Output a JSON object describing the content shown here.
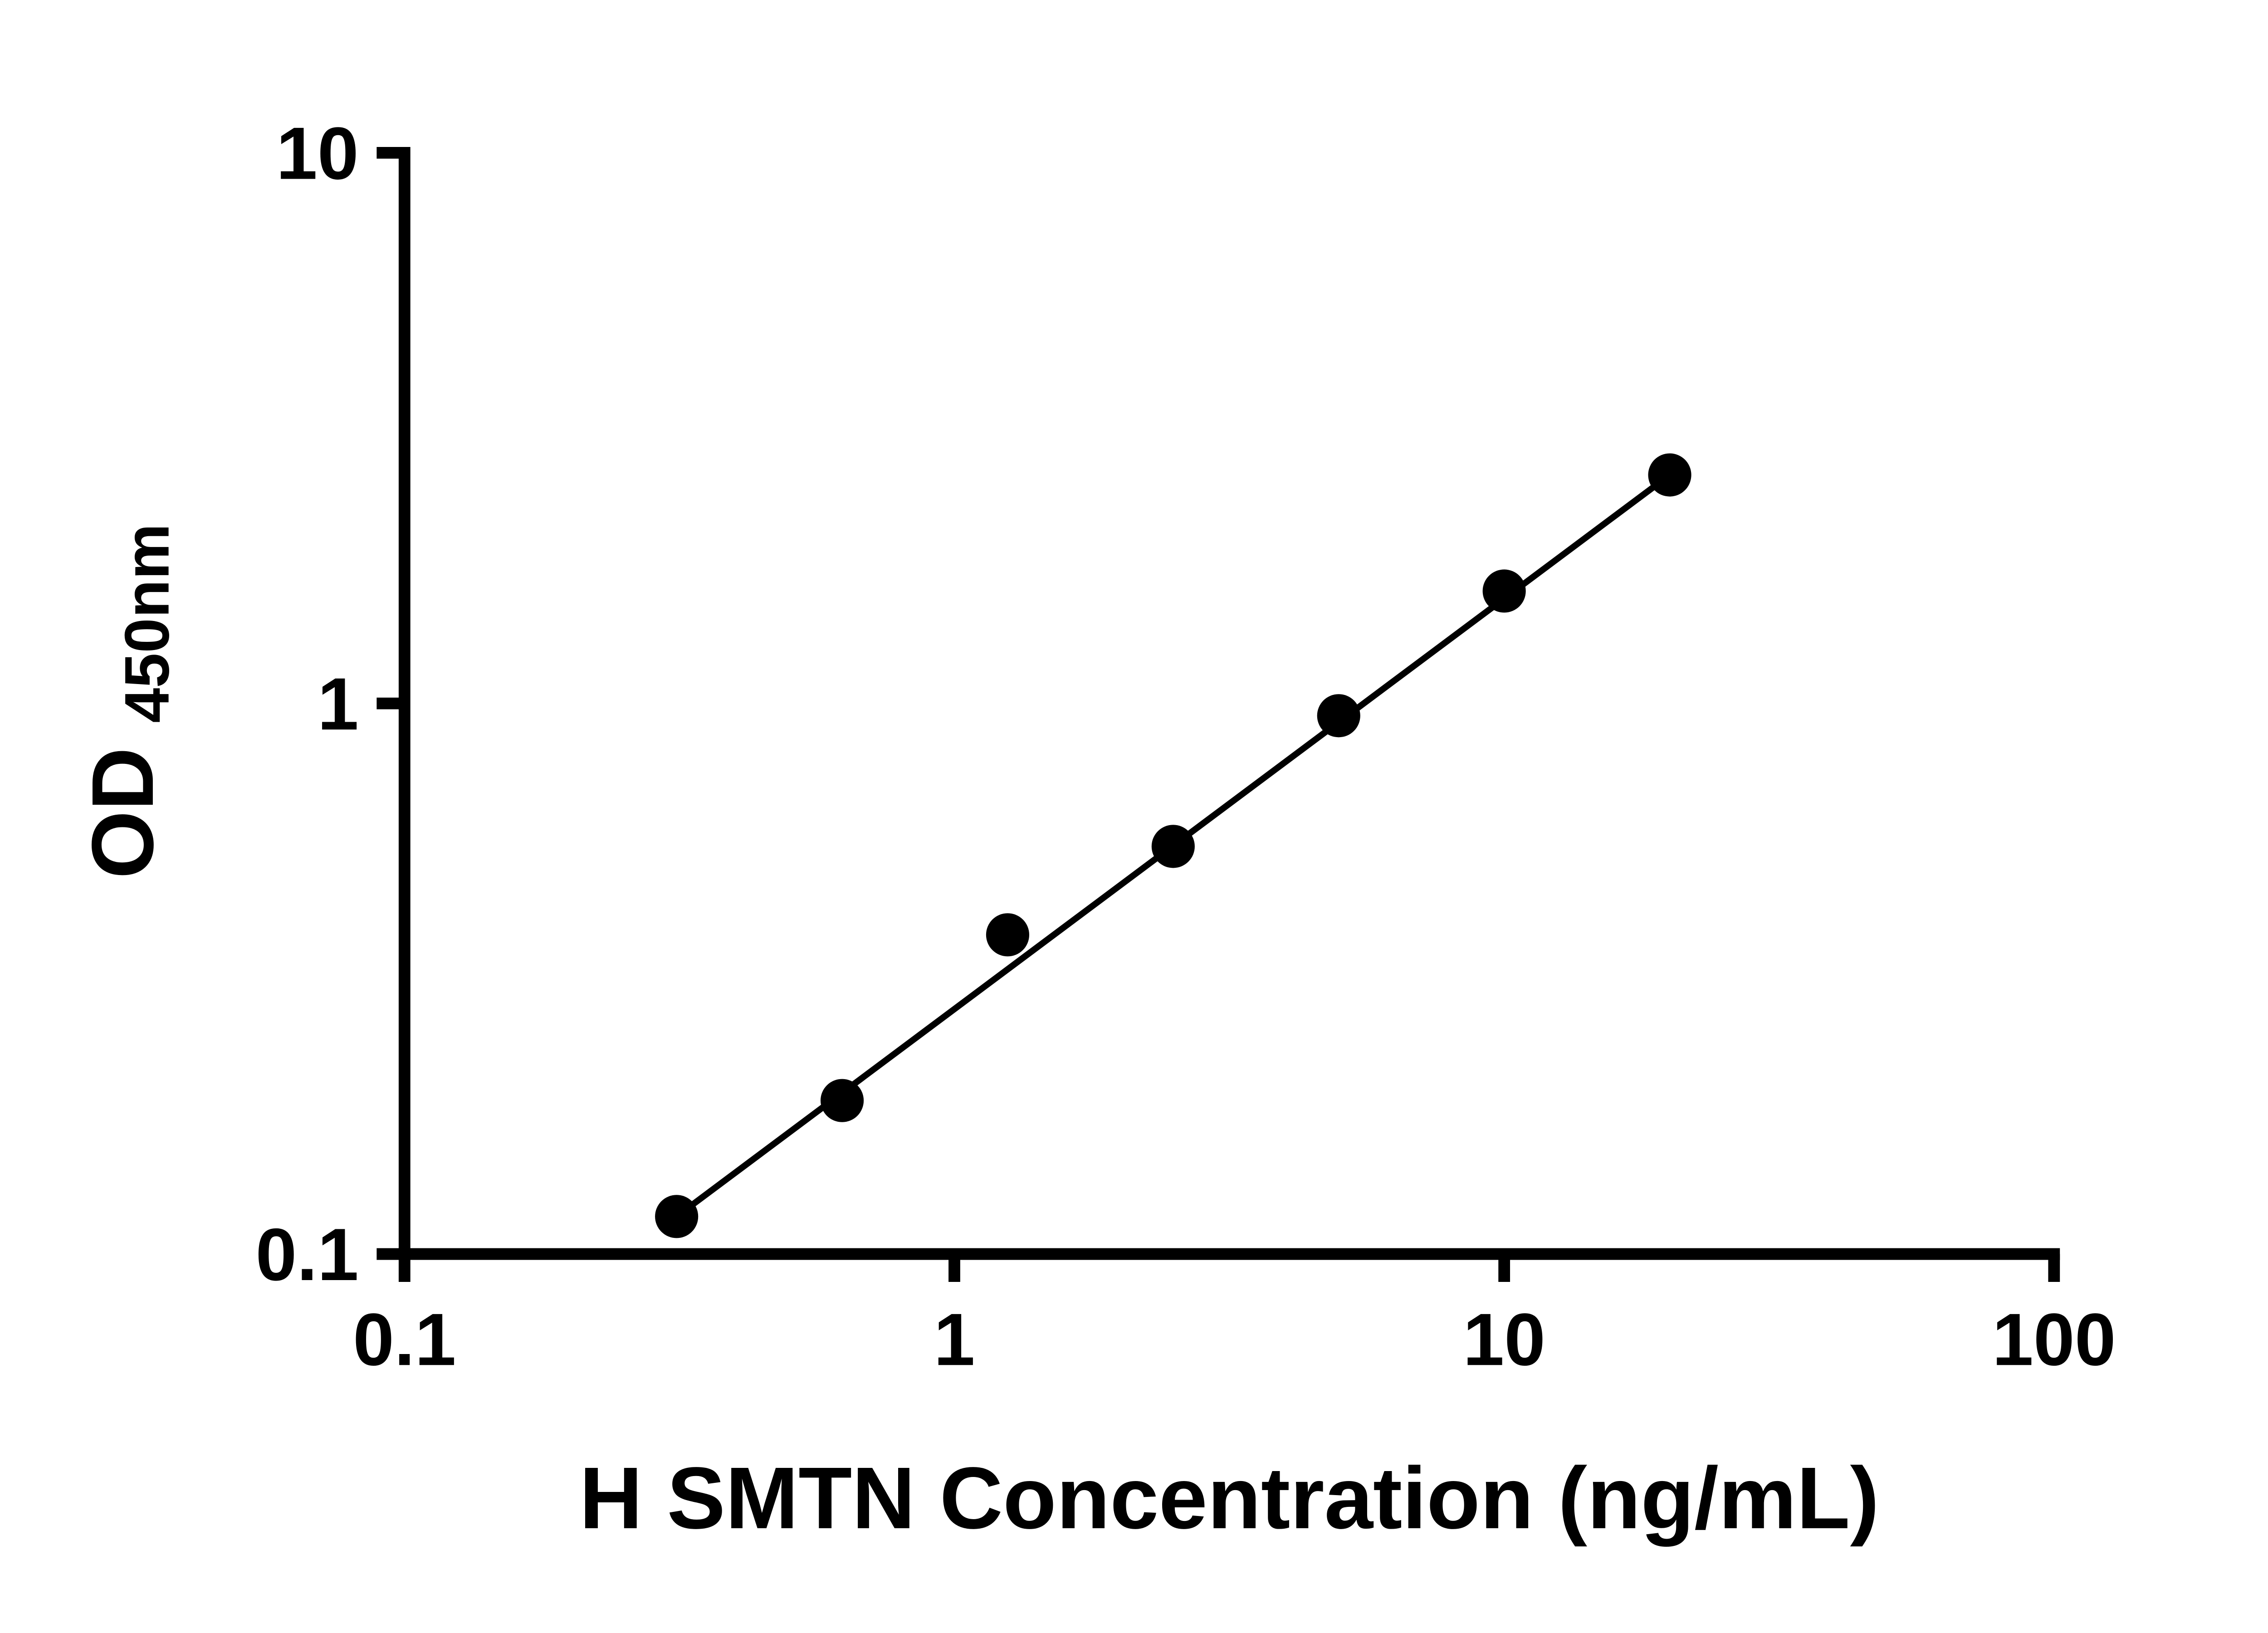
{
  "chart_data": {
    "type": "scatter",
    "title": "",
    "xlabel": "H SMTN Concentration (ng/mL)",
    "ylabel": {
      "main": "OD",
      "sub": "450nm"
    },
    "xscale": "log",
    "yscale": "log",
    "xlim": [
      0.1,
      100
    ],
    "ylim": [
      0.1,
      10
    ],
    "x_ticks": [
      0.1,
      1,
      10,
      100
    ],
    "x_tick_labels": [
      "0.1",
      "1",
      "10",
      "100"
    ],
    "y_ticks": [
      0.1,
      1,
      10
    ],
    "y_tick_labels": [
      "0.1",
      "1",
      "10"
    ],
    "grid": false,
    "legend": "none",
    "marker_color": "#000000",
    "line_color": "#000000",
    "trendline": true,
    "x": [
      0.3125,
      0.625,
      1.25,
      2.5,
      5,
      10,
      20
    ],
    "y": [
      0.117,
      0.19,
      0.38,
      0.55,
      0.95,
      1.6,
      2.6
    ]
  }
}
